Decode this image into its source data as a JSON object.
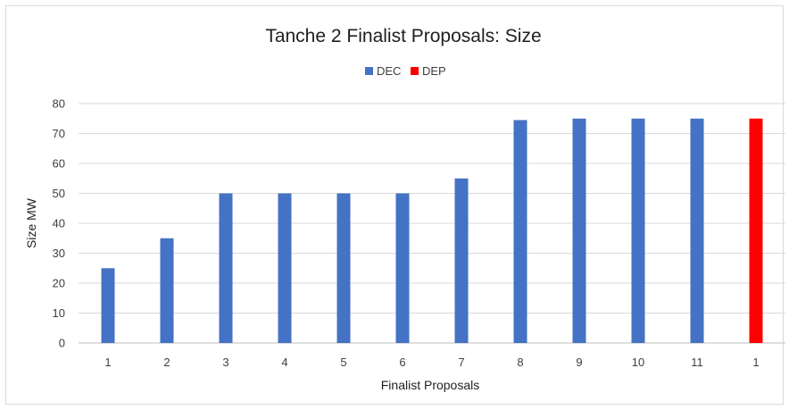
{
  "chart_data": {
    "type": "bar",
    "title": "Tanche 2 Finalist Proposals: Size",
    "xlabel": "Finalist Proposals",
    "ylabel": "Size MW",
    "ylim": [
      0,
      80
    ],
    "yticks": [
      0,
      10,
      20,
      30,
      40,
      50,
      60,
      70,
      80
    ],
    "categories": [
      "1",
      "2",
      "3",
      "4",
      "5",
      "6",
      "7",
      "8",
      "9",
      "10",
      "11",
      "1"
    ],
    "series": [
      {
        "name": "DEC",
        "color": "#4472c4",
        "values": [
          25,
          35,
          50,
          50,
          50,
          50,
          55,
          74.5,
          75,
          75,
          75,
          null
        ]
      },
      {
        "name": "DEP",
        "color": "#ff0000",
        "values": [
          null,
          null,
          null,
          null,
          null,
          null,
          null,
          null,
          null,
          null,
          null,
          75
        ]
      }
    ],
    "legend_position": "top-center",
    "grid": true
  }
}
